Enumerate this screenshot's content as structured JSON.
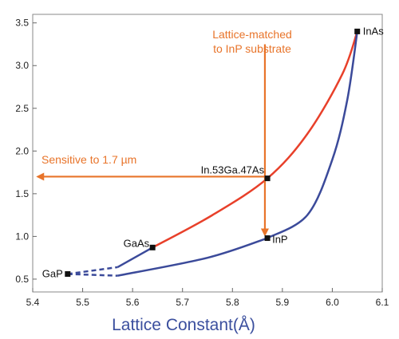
{
  "chart_data": {
    "type": "line",
    "xlabel": "Lattice Constant(Å)",
    "ylabel": "",
    "xlim": [
      5.4,
      6.1
    ],
    "ylim": [
      0.35,
      3.6
    ],
    "xticks": [
      "5.4",
      "5.5",
      "5.6",
      "5.7",
      "5.8",
      "5.9",
      "6.0",
      "6.1"
    ],
    "yticks": [
      "0.5",
      "1.0",
      "1.5",
      "2.0",
      "2.5",
      "3.0",
      "3.5"
    ],
    "grid": false,
    "points": [
      {
        "label": "GaP",
        "x": 5.47,
        "y": 0.56
      },
      {
        "label": "GaAs",
        "x": 5.64,
        "y": 0.87
      },
      {
        "label": "In.53Ga.47As",
        "x": 5.87,
        "y": 1.68
      },
      {
        "label": "InP",
        "x": 5.87,
        "y": 0.98
      },
      {
        "label": "InAs",
        "x": 6.05,
        "y": 3.4
      }
    ],
    "series": [
      {
        "color": "#e8402a",
        "x": [
          5.64,
          5.76,
          5.87,
          5.95,
          6.02,
          6.05
        ],
        "y": [
          0.87,
          1.25,
          1.68,
          2.2,
          2.9,
          3.4
        ]
      },
      {
        "color": "#3b4a9a",
        "x": [
          5.47,
          5.57,
          5.64
        ],
        "y": [
          0.56,
          0.64,
          0.87
        ],
        "dashed": [
          0,
          1
        ]
      },
      {
        "color": "#3b4a9a",
        "x": [
          5.47,
          5.57,
          5.75,
          5.87
        ],
        "y": [
          0.56,
          0.54,
          0.75,
          0.98
        ],
        "dashed": [
          0,
          1
        ]
      },
      {
        "color": "#3b4a9a",
        "x": [
          5.87,
          5.95,
          6.0,
          6.03,
          6.05
        ],
        "y": [
          0.98,
          1.25,
          1.9,
          2.6,
          3.4
        ]
      }
    ],
    "annotations": [
      {
        "text_lines": [
          "Lattice-matched",
          "to InP substrate"
        ],
        "color": "#e8742a",
        "arrow": {
          "from": [
            5.865,
            3.25
          ],
          "to": [
            5.865,
            0.98
          ]
        }
      },
      {
        "text_lines": [
          "Sensitive to 1.7 µm"
        ],
        "color": "#e8742a",
        "arrow": {
          "from": [
            5.865,
            1.7
          ],
          "to": [
            5.41,
            1.7
          ]
        }
      }
    ]
  }
}
